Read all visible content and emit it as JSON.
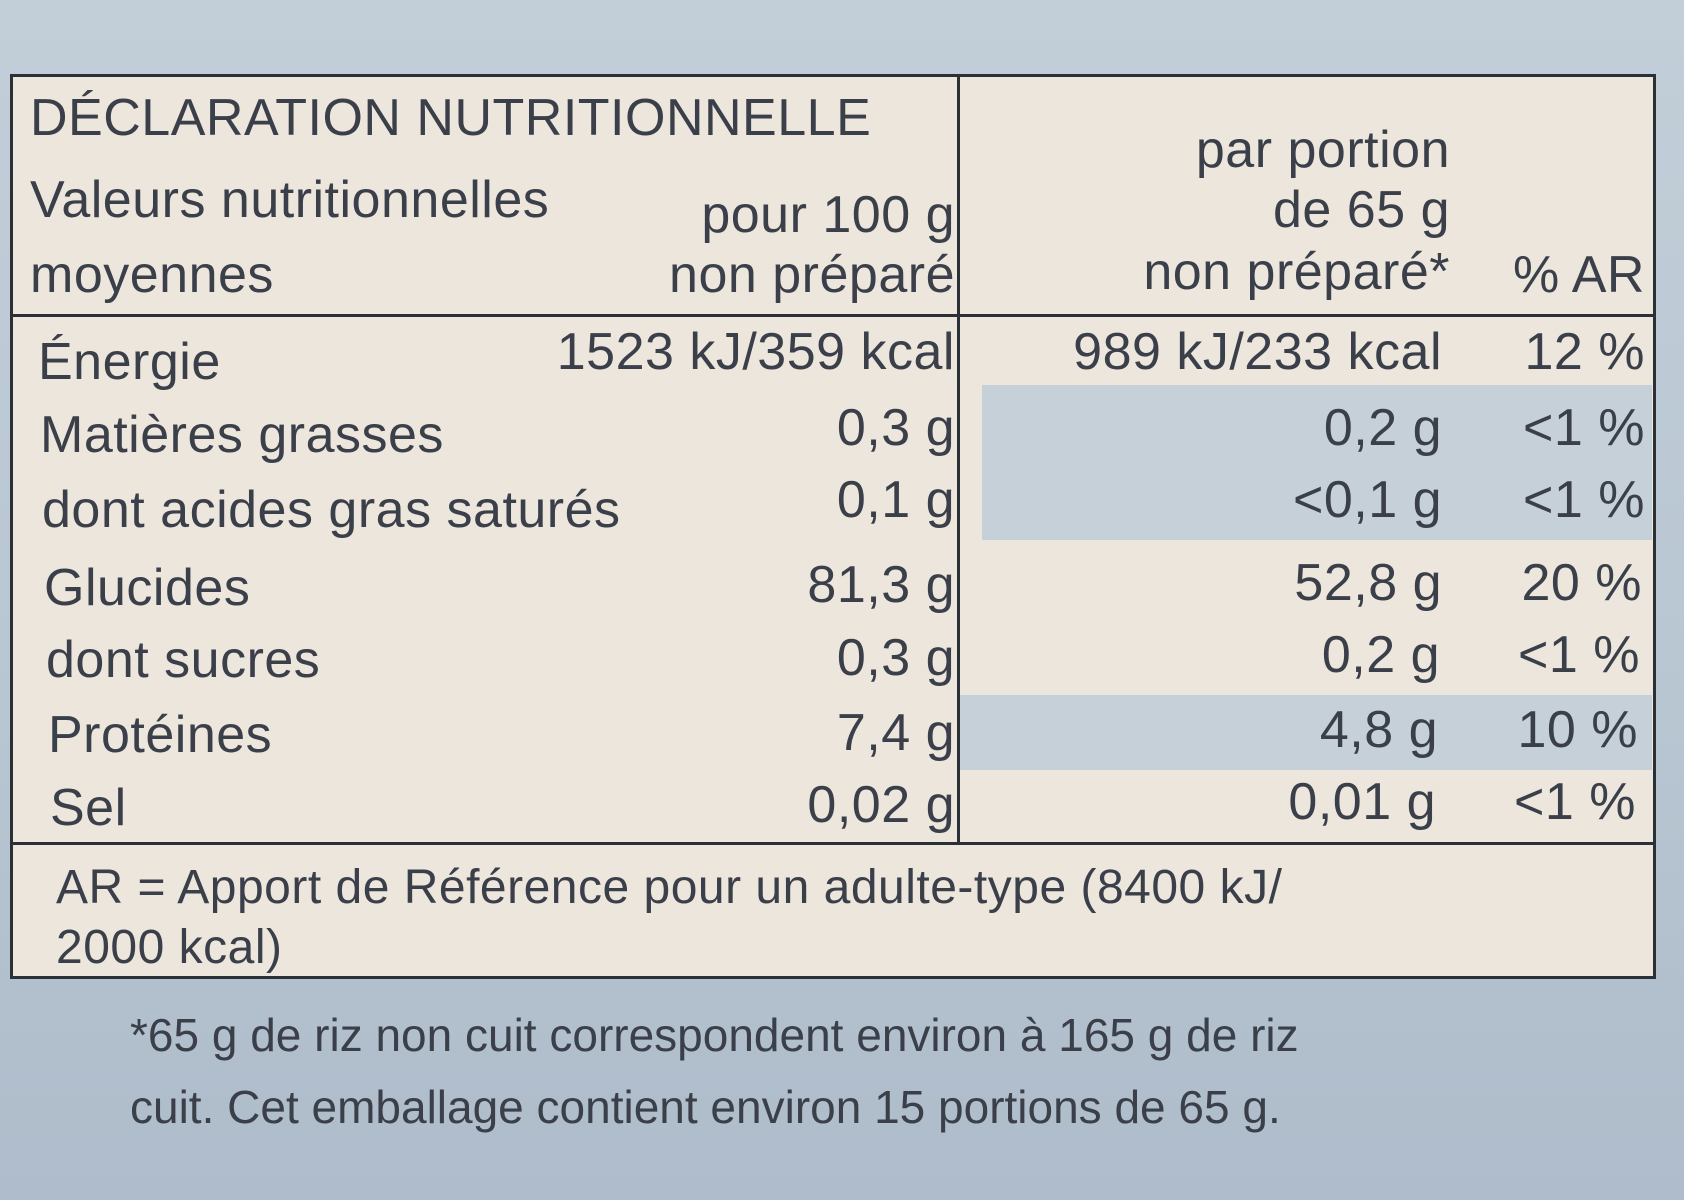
{
  "header": {
    "title": "DÉCLARATION NUTRITIONNELLE",
    "subtitle_line1": "Valeurs nutritionnelles",
    "subtitle_line2": "moyennes",
    "col1_line1": "pour 100 g",
    "col1_line2": "non préparé",
    "col2_line1": "par portion",
    "col2_line2": "de 65 g",
    "col2_line3": "non préparé*",
    "col3": "% AR"
  },
  "rows": [
    {
      "name": "Énergie",
      "per100": "1523 kJ/359 kcal",
      "portion": "989 kJ/233 kcal",
      "ar": "12 %"
    },
    {
      "name": "Matières grasses",
      "per100": "0,3 g",
      "portion": "0,2 g",
      "ar": "<1 %"
    },
    {
      "name": "dont acides gras saturés",
      "per100": "0,1 g",
      "portion": "<0,1 g",
      "ar": "<1 %"
    },
    {
      "name": "Glucides",
      "per100": "81,3 g",
      "portion": "52,8 g",
      "ar": "20 %"
    },
    {
      "name": "dont sucres",
      "per100": "0,3 g",
      "portion": "0,2 g",
      "ar": "<1 %"
    },
    {
      "name": "Protéines",
      "per100": "7,4 g",
      "portion": "4,8 g",
      "ar": "10 %"
    },
    {
      "name": "Sel",
      "per100": "0,02 g",
      "portion": "0,01 g",
      "ar": "<1 %"
    }
  ],
  "footer": {
    "line1": "AR = Apport de Référence pour un adulte-type (8400 kJ/",
    "line2": "2000 kcal)"
  },
  "note": {
    "line1": "*65 g de riz non cuit correspondent environ à 165 g de riz",
    "line2": "cuit. Cet emballage contient environ 15 portions de 65 g."
  }
}
